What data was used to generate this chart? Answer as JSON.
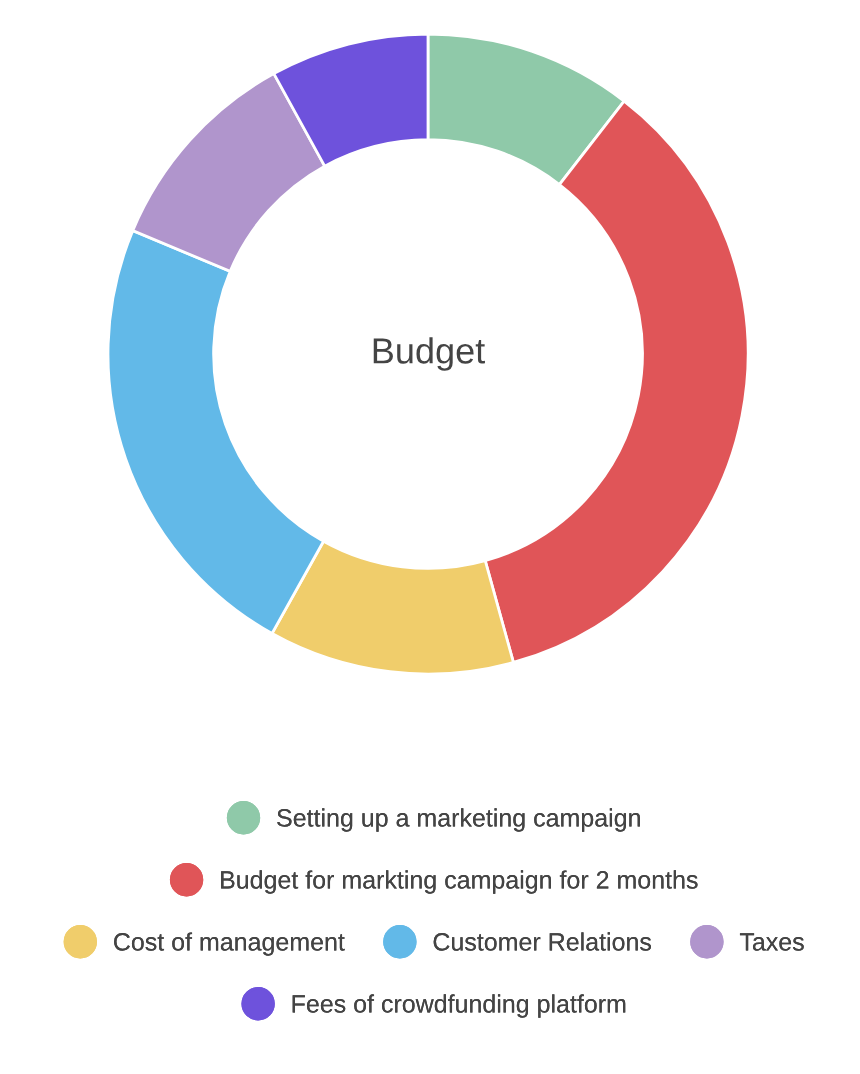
{
  "chart_data": {
    "type": "donut",
    "title": "Budget",
    "categories": [
      "Setting up a marketing campaign",
      "Budget for markting campaign for 2 months",
      "Cost of management",
      "Customer Relations",
      "Taxes",
      "Fees of crowdfunding platform"
    ],
    "values": [
      10.5,
      35.2,
      12.4,
      23.2,
      10.7,
      8.0
    ],
    "colors": [
      "#8fc9a9",
      "#e05558",
      "#f0cd6b",
      "#62b9e8",
      "#b095cc",
      "#6e52dc"
    ],
    "legend": "bottom"
  }
}
